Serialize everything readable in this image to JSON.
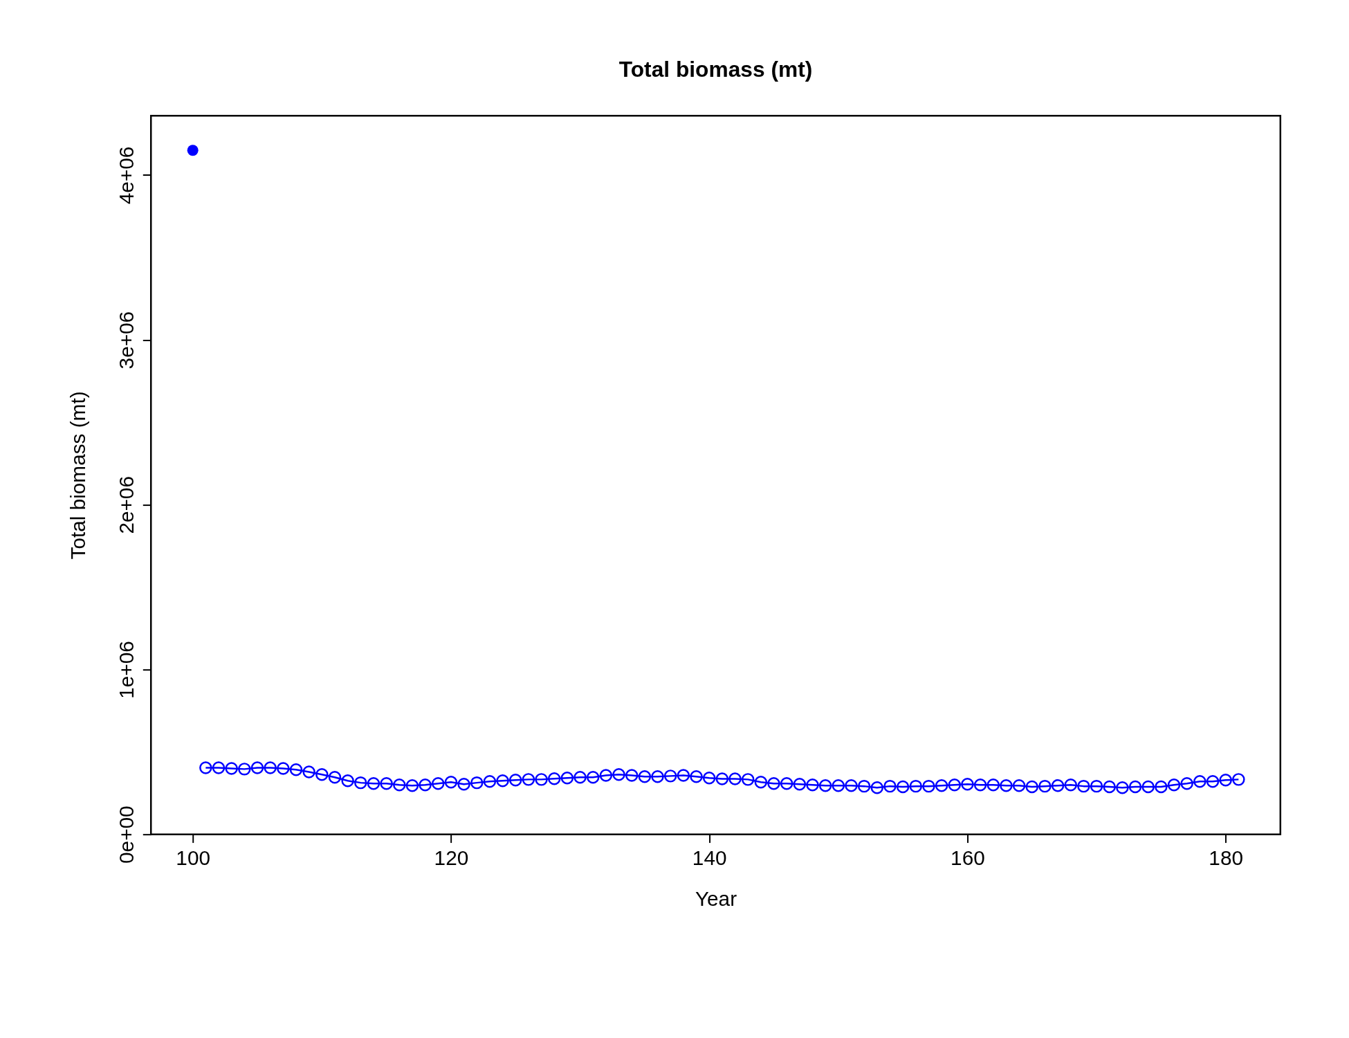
{
  "chart_data": {
    "type": "line",
    "title": "Total biomass (mt)",
    "xlabel": "Year",
    "ylabel": "Total biomass (mt)",
    "xlim": [
      96.76,
      184.24
    ],
    "xticks": [
      100,
      120,
      140,
      160,
      180
    ],
    "ylim": [
      0,
      4360000
    ],
    "yticks": [
      {
        "value": 0,
        "label": "0e+00"
      },
      {
        "value": 1000000,
        "label": "1e+06"
      },
      {
        "value": 2000000,
        "label": "2e+06"
      },
      {
        "value": 3000000,
        "label": "3e+06"
      },
      {
        "value": 4000000,
        "label": "4e+06"
      }
    ],
    "grid": false,
    "legend": false,
    "marker": "circle",
    "series": [
      {
        "type": "scatter",
        "color": "#0000ff",
        "x": [
          100
        ],
        "values": [
          4150000
        ]
      },
      {
        "color": "#0000ff",
        "x": [
          101,
          102,
          103,
          104,
          105,
          106,
          107,
          108,
          109,
          110,
          111,
          112,
          113,
          114,
          115,
          116,
          117,
          118,
          119,
          120,
          121,
          122,
          123,
          124,
          125,
          126,
          127,
          128,
          129,
          130,
          131,
          132,
          133,
          134,
          135,
          136,
          137,
          138,
          139,
          140,
          141,
          142,
          143,
          144,
          145,
          146,
          147,
          148,
          149,
          150,
          151,
          152,
          153,
          154,
          155,
          156,
          157,
          158,
          159,
          160,
          161,
          162,
          163,
          164,
          165,
          166,
          167,
          168,
          169,
          170,
          171,
          172,
          173,
          174,
          175,
          176,
          177,
          178,
          179,
          180,
          181
        ],
        "values": [
          404000,
          404000,
          400000,
          396000,
          404000,
          404000,
          400000,
          392000,
          379000,
          363000,
          346000,
          325000,
          313000,
          308000,
          308000,
          300000,
          296000,
          300000,
          308000,
          317000,
          304000,
          313000,
          321000,
          325000,
          329000,
          333000,
          333000,
          338000,
          342000,
          346000,
          346000,
          358000,
          363000,
          358000,
          350000,
          350000,
          354000,
          358000,
          350000,
          342000,
          337000,
          337000,
          333000,
          317000,
          308000,
          308000,
          304000,
          300000,
          296000,
          296000,
          296000,
          292000,
          283000,
          292000,
          288000,
          292000,
          292000,
          296000,
          300000,
          304000,
          300000,
          300000,
          296000,
          296000,
          288000,
          292000,
          296000,
          300000,
          292000,
          292000,
          288000,
          283000,
          288000,
          288000,
          288000,
          300000,
          308000,
          321000,
          321000,
          329000,
          333000
        ]
      }
    ]
  }
}
